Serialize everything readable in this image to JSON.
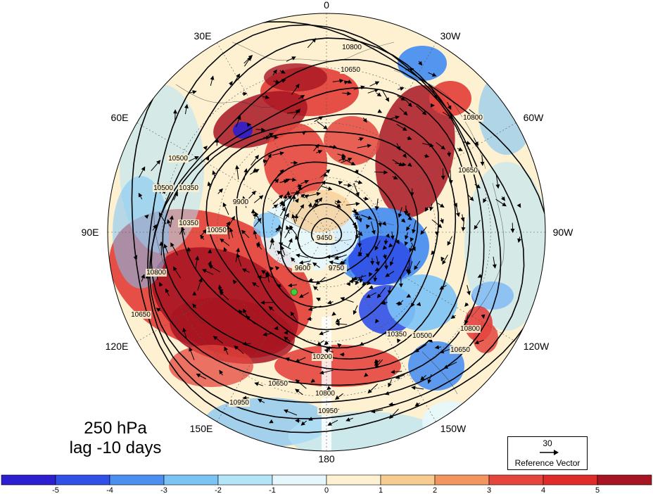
{
  "title": {
    "line1": "250 hPa",
    "line2": "lag -10 days"
  },
  "longitude_labels": [
    {
      "text": "0",
      "position": "top"
    },
    {
      "text": "30E",
      "position": "upper-left"
    },
    {
      "text": "30W",
      "position": "upper-right"
    },
    {
      "text": "60E",
      "position": "left-upper"
    },
    {
      "text": "60W",
      "position": "right-upper"
    },
    {
      "text": "90E",
      "position": "left"
    },
    {
      "text": "90W",
      "position": "right"
    },
    {
      "text": "120E",
      "position": "left-lower"
    },
    {
      "text": "120W",
      "position": "right-lower"
    },
    {
      "text": "150E",
      "position": "lower-left"
    },
    {
      "text": "150W",
      "position": "lower-right"
    },
    {
      "text": "180",
      "position": "bottom"
    }
  ],
  "contour_labels": [
    "10800",
    "10650",
    "10800",
    "10650",
    "10500",
    "10350",
    "10050",
    "9900",
    "9750",
    "9600",
    "9450",
    "10200",
    "10350",
    "10500",
    "10650",
    "10800",
    "10950",
    "10800",
    "10650",
    "10950",
    "10800",
    "10650",
    "10500",
    "10350"
  ],
  "reference_vector": {
    "magnitude": "30",
    "label": "Reference Vector"
  },
  "colorbar": {
    "ticks": [
      "-5",
      "-4",
      "-3",
      "-2",
      "-1",
      "0",
      "1",
      "2",
      "3",
      "4",
      "5"
    ],
    "colors": [
      "#2d1ecf",
      "#3050e8",
      "#4b8ff0",
      "#7cc3f5",
      "#b4e4f8",
      "#e6f7fc",
      "#fdf1d2",
      "#f8cb8e",
      "#f2955e",
      "#e4463e",
      "#e02b2b",
      "#a81522"
    ]
  },
  "marker": {
    "color": "#3cd23c"
  }
}
